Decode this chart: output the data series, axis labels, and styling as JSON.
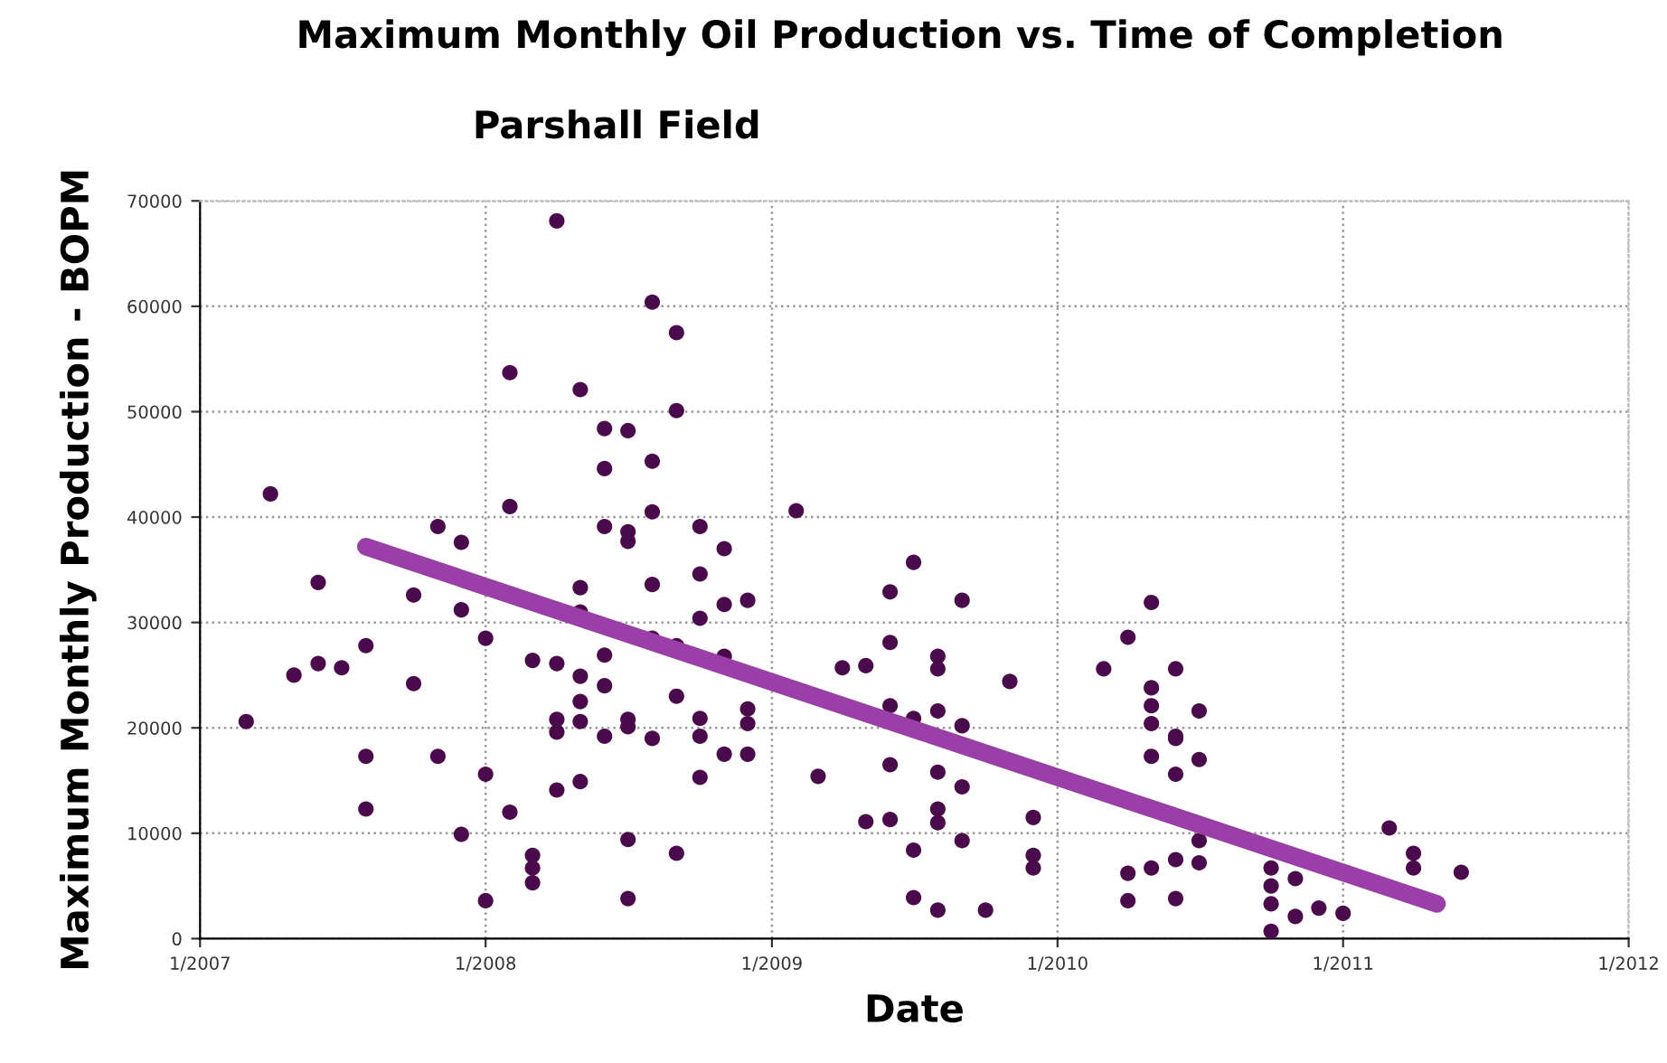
{
  "chart_data": {
    "type": "scatter",
    "title": "Maximum Monthly Oil Production vs. Time of Completion",
    "subtitle": "Parshall Field",
    "xlabel": "Date",
    "ylabel": "Maximum Monthly Production - BOPM",
    "xlim": [
      "2007-01-01",
      "2012-01-01"
    ],
    "xticks": [
      {
        "value": "2007-01-01",
        "label": "1/2007"
      },
      {
        "value": "2008-01-01",
        "label": "1/2008"
      },
      {
        "value": "2009-01-01",
        "label": "1/2009"
      },
      {
        "value": "2010-01-01",
        "label": "1/2010"
      },
      {
        "value": "2011-01-01",
        "label": "1/2011"
      },
      {
        "value": "2012-01-01",
        "label": "1/2012"
      }
    ],
    "ylim": [
      0,
      70000
    ],
    "yticks": [
      0,
      10000,
      20000,
      30000,
      40000,
      50000,
      60000,
      70000
    ],
    "grid": true,
    "legend": false,
    "marker": "circle",
    "series": [
      {
        "color": "#4b0a4b",
        "x": [
          "2007-03",
          "2007-04",
          "2007-05",
          "2007-06",
          "2007-07",
          "2007-08",
          "2007-06",
          "2007-10",
          "2007-08",
          "2007-08",
          "2007-10",
          "2007-11",
          "2007-12",
          "2008-01",
          "2007-12",
          "2008-01",
          "2008-02",
          "2008-01",
          "2008-03",
          "2008-03",
          "2008-03",
          "2008-03",
          "2008-04",
          "2008-04",
          "2008-04",
          "2008-05",
          "2008-05",
          "2008-04",
          "2008-05",
          "2008-05",
          "2008-05",
          "2008-05",
          "2008-06",
          "2008-06",
          "2008-06",
          "2008-07",
          "2008-07",
          "2008-07",
          "2008-07",
          "2008-08",
          "2008-08",
          "2008-08",
          "2008-09",
          "2008-09",
          "2008-10",
          "2008-10",
          "2008-09",
          "2008-10",
          "2008-11",
          "2008-11",
          "2008-12",
          "2008-10",
          "2008-10",
          "2008-11",
          "2008-12",
          "2008-12",
          "2008-12",
          "2008-11",
          "2009-03",
          "2009-05",
          "2009-04",
          "2009-05",
          "2009-06",
          "2009-06",
          "2009-07",
          "2009-06",
          "2009-06",
          "2009-06",
          "2009-07",
          "2009-07",
          "2009-08",
          "2008-04",
          "2008-08",
          "2008-09",
          "2008-02",
          "2008-05",
          "2008-09",
          "2008-06",
          "2008-07",
          "2008-06",
          "2008-08",
          "2008-02",
          "2008-08",
          "2009-02",
          "2007-11",
          "2007-12",
          "2008-06",
          "2008-07",
          "2008-07",
          "2008-10",
          "2009-09",
          "2009-08",
          "2009-08",
          "2009-11",
          "2009-07",
          "2009-08",
          "2009-09",
          "2009-08",
          "2009-09",
          "2009-08",
          "2009-08",
          "2009-09",
          "2009-12",
          "2009-12",
          "2009-12",
          "2009-10",
          "2010-05",
          "2010-04",
          "2010-03",
          "2010-05",
          "2010-05",
          "2010-05",
          "2010-06",
          "2010-07",
          "2010-06",
          "2010-06",
          "2010-07",
          "2010-05",
          "2010-06",
          "2010-04",
          "2010-05",
          "2010-06",
          "2010-07",
          "2010-04",
          "2010-06",
          "2010-07",
          "2010-10",
          "2010-10",
          "2010-10",
          "2010-11",
          "2010-10",
          "2010-11",
          "2010-12",
          "2011-01",
          "2011-03",
          "2011-04",
          "2011-04",
          "2011-06"
        ],
        "values": [
          20600,
          42200,
          25000,
          26100,
          25700,
          27800,
          33800,
          32600,
          17300,
          12300,
          24200,
          17300,
          9900,
          28500,
          31200,
          15600,
          12000,
          3600,
          6700,
          7900,
          5300,
          26400,
          26100,
          20800,
          19600,
          20600,
          24900,
          14100,
          14900,
          22500,
          33300,
          31000,
          19200,
          26900,
          24000,
          20800,
          20100,
          9400,
          3800,
          28500,
          33600,
          19000,
          27800,
          23000,
          30400,
          19200,
          8100,
          34600,
          31700,
          37000,
          32100,
          20900,
          15300,
          17500,
          17500,
          20400,
          21800,
          26800,
          15400,
          11100,
          25700,
          25900,
          32900,
          28100,
          35700,
          22100,
          16500,
          11300,
          8400,
          3900,
          2700,
          68100,
          60400,
          57500,
          53700,
          52100,
          50100,
          48400,
          48200,
          44600,
          45300,
          41000,
          40500,
          40600,
          39100,
          37600,
          39100,
          38600,
          37700,
          39100,
          32100,
          26800,
          25600,
          24400,
          20900,
          21600,
          20200,
          15800,
          14400,
          12300,
          11000,
          9300,
          11500,
          7900,
          6700,
          2700,
          31900,
          28600,
          25600,
          23800,
          22100,
          20400,
          25600,
          21600,
          19000,
          19200,
          17000,
          17300,
          15600,
          6200,
          6700,
          7500,
          7200,
          3600,
          3800,
          9300,
          6700,
          5000,
          3300,
          2100,
          700,
          5700,
          2900,
          2400,
          10500,
          8100,
          6700,
          6300
        ]
      },
      {
        "type": "line",
        "color": "#9b3fa8",
        "marker": "none",
        "x": [
          "2007-08",
          "2011-05"
        ],
        "values": [
          37200,
          3300
        ]
      }
    ]
  }
}
